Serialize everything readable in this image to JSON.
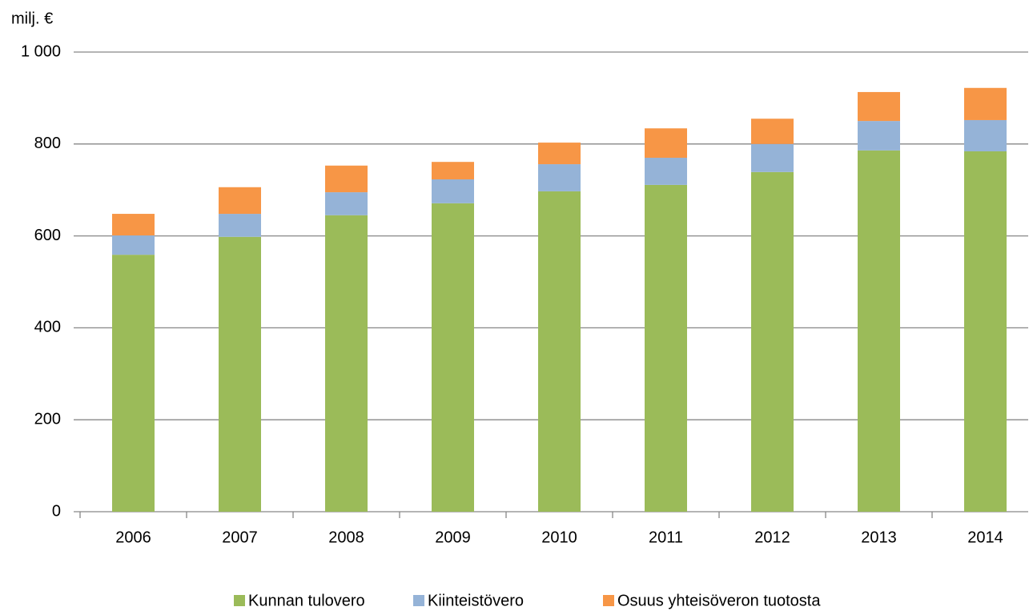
{
  "chart_data": {
    "type": "stacked_bar",
    "unit_label": "milj. €",
    "categories": [
      "2006",
      "2007",
      "2008",
      "2009",
      "2010",
      "2011",
      "2012",
      "2013",
      "2014"
    ],
    "series": [
      {
        "name": "Kunnan tulovero",
        "color": "#9bbb59",
        "values": [
          559,
          598,
          645,
          671,
          697,
          711,
          739,
          786,
          784
        ]
      },
      {
        "name": "Kiinteistövero",
        "color": "#95b3d7",
        "values": [
          42,
          50,
          50,
          52,
          59,
          59,
          61,
          64,
          68
        ]
      },
      {
        "name": "Osuus yhteisöveron tuotosta",
        "color": "#f79646",
        "values": [
          47,
          58,
          58,
          38,
          47,
          64,
          55,
          63,
          70
        ]
      }
    ],
    "ylim": [
      0,
      1000
    ],
    "yticks": [
      0,
      200,
      400,
      600,
      800,
      {
        "value": 1000,
        "label": "1 000"
      }
    ],
    "grid": true,
    "legend": "bottom"
  }
}
